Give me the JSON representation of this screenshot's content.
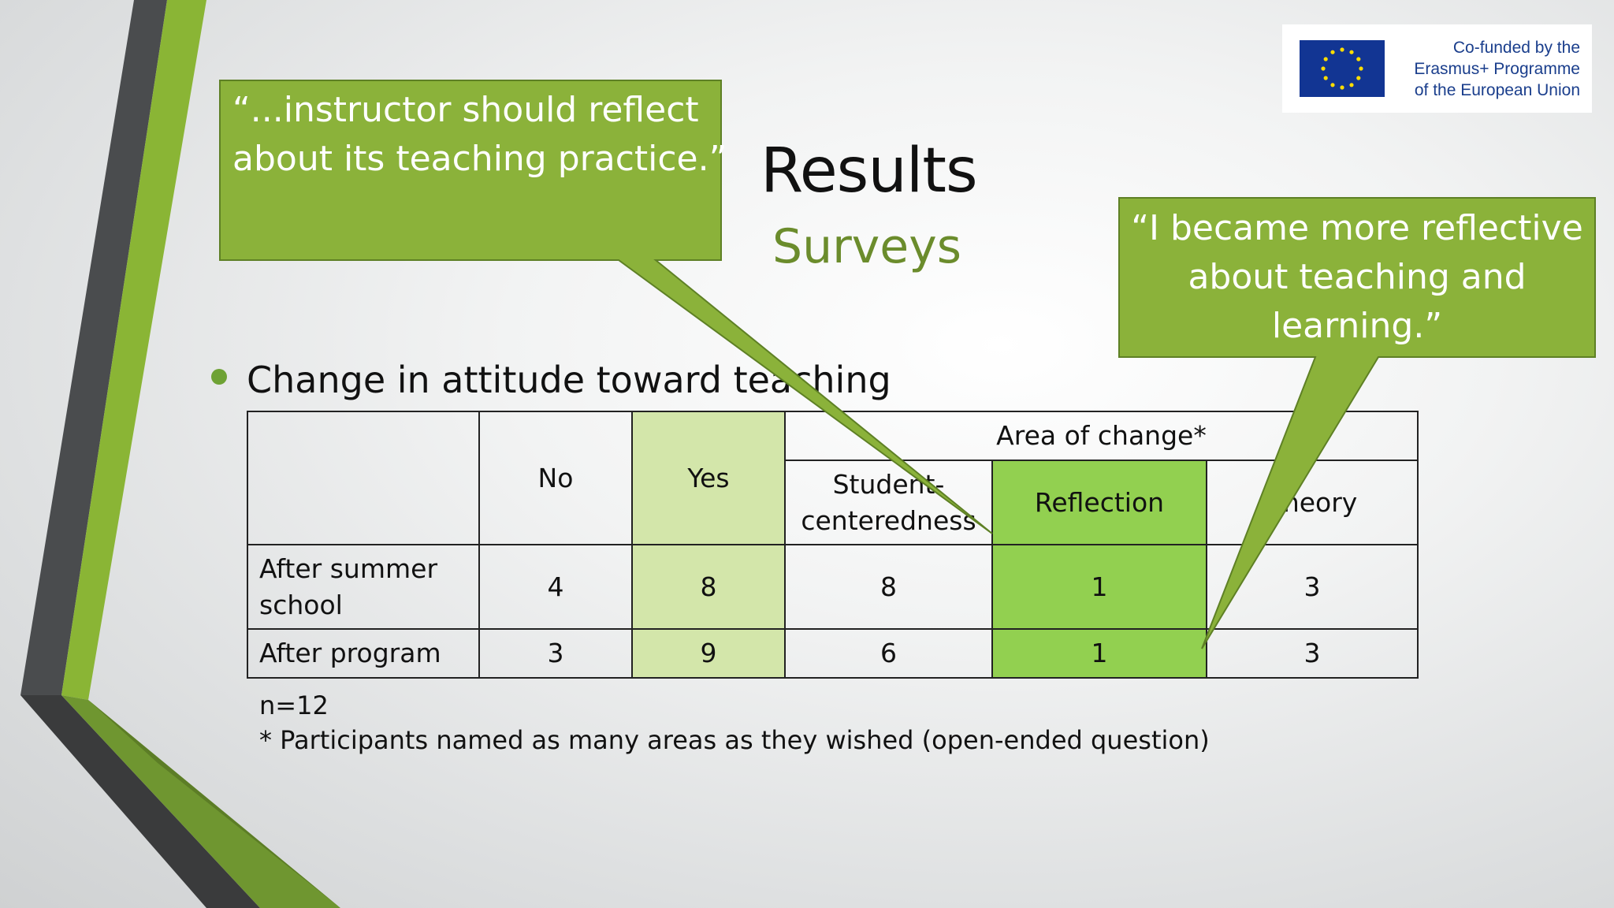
{
  "slide": {
    "title": "Results",
    "subtitle": "Surveys",
    "logo_text": [
      "Co-funded by the",
      "Erasmus+ Programme",
      "of the European Union"
    ],
    "callout_left": {
      "lines": [
        "“...instructor should reflect",
        "about its teaching practice.”"
      ]
    },
    "callout_right": {
      "lines": [
        "“I became more reflective",
        "about teaching and",
        "learning.”"
      ]
    },
    "bullet": "Change in attitude toward teaching",
    "table": {
      "col_no": "No",
      "col_yes": "Yes",
      "group_header": "Area of change*",
      "col_student": [
        "Student-",
        "centeredness"
      ],
      "col_reflection": "Reflection",
      "col_theory": "Theory",
      "rows": [
        {
          "label": [
            "After summer",
            "school"
          ],
          "no": "4",
          "yes": "8",
          "student": "8",
          "reflection": "1",
          "theory": "3"
        },
        {
          "label": [
            "After program"
          ],
          "no": "3",
          "yes": "9",
          "student": "6",
          "reflection": "1",
          "theory": "3"
        }
      ]
    },
    "footnote_n": "n=12",
    "footnote_star": "* Participants named as many areas as they wished (open-ended question)",
    "colors": {
      "accent_green": "#8bb23a",
      "dark_green": "#5e8025",
      "yes_fill": "#d3e6aa",
      "reflection_fill": "#92d050",
      "subtitle_green": "#6b8c2c",
      "eu_blue": "#123593"
    }
  }
}
